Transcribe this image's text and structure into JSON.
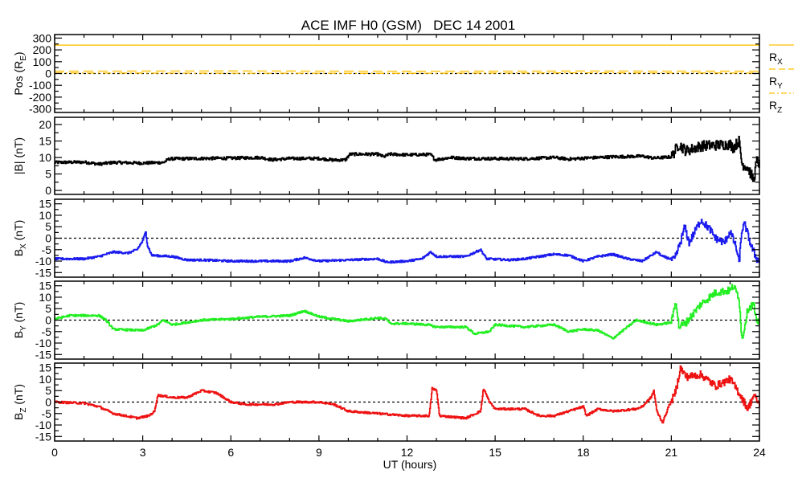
{
  "chart_data": {
    "type": "line",
    "title": "ACE IMF H0 (GSM)   DEC 14 2001",
    "xlabel": "UT (hours)",
    "xlim": [
      0,
      24
    ],
    "xticks": [
      0,
      3,
      6,
      9,
      12,
      15,
      18,
      21,
      24
    ],
    "panels": [
      {
        "id": "pos",
        "ylabel": "Pos (R",
        "ylabel_sub": "E",
        "ylabel_suffix": ")",
        "ylim": [
          -330,
          330
        ],
        "yticks": [
          300,
          200,
          100,
          0,
          -100,
          -200,
          -300
        ],
        "zero_line": true,
        "series": [
          {
            "name": "R",
            "sub": "X",
            "color": "#ffc000",
            "style": "solid",
            "points": [
              [
                0,
                240
              ],
              [
                24,
                240
              ]
            ]
          },
          {
            "name": "R",
            "sub": "Y",
            "color": "#ffc000",
            "style": "dashed",
            "points": [
              [
                0,
                20
              ],
              [
                6,
                22
              ],
              [
                12,
                19
              ],
              [
                18,
                21
              ],
              [
                24,
                20
              ]
            ]
          },
          {
            "name": "R",
            "sub": "Z",
            "color": "#ffc000",
            "style": "dashdot",
            "points": [
              [
                0,
                5
              ],
              [
                6,
                3
              ],
              [
                12,
                2
              ],
              [
                18,
                6
              ],
              [
                24,
                4
              ]
            ]
          }
        ]
      },
      {
        "id": "bmag",
        "ylabel": "|B| (nT)",
        "ylim": [
          -1.2,
          22.2
        ],
        "yticks": [
          20,
          15,
          10,
          5,
          0
        ],
        "zero_line": false,
        "series": [
          {
            "name": "|B|",
            "color": "#000000",
            "points": [
              [
                0,
                8.5
              ],
              [
                1,
                8.6
              ],
              [
                1.5,
                8
              ],
              [
                2,
                8.5
              ],
              [
                3,
                8.3
              ],
              [
                3.7,
                8.5
              ],
              [
                3.9,
                9.6
              ],
              [
                6,
                9.8
              ],
              [
                7,
                10
              ],
              [
                7.4,
                9.3
              ],
              [
                8,
                9.7
              ],
              [
                9,
                9.7
              ],
              [
                9.5,
                9.2
              ],
              [
                9.9,
                9.3
              ],
              [
                10.05,
                11
              ],
              [
                11,
                11
              ],
              [
                11.2,
                10.2
              ],
              [
                11.4,
                11
              ],
              [
                12,
                10.8
              ],
              [
                12.8,
                10.9
              ],
              [
                12.95,
                9.3
              ],
              [
                13.5,
                10
              ],
              [
                14,
                9.7
              ],
              [
                16,
                9.6
              ],
              [
                17,
                10
              ],
              [
                17.5,
                9.5
              ],
              [
                18,
                9.8
              ],
              [
                19,
                10.2
              ],
              [
                20,
                10.4
              ],
              [
                20.4,
                9.8
              ],
              [
                21,
                10.2
              ],
              [
                21.25,
                14
              ],
              [
                21.5,
                12
              ],
              [
                22,
                13.5
              ],
              [
                23,
                14
              ],
              [
                23.1,
                13
              ],
              [
                23.3,
                15
              ],
              [
                23.4,
                8
              ],
              [
                23.6,
                7
              ],
              [
                23.8,
                3
              ],
              [
                23.9,
                9
              ],
              [
                24,
                8
              ]
            ]
          }
        ]
      },
      {
        "id": "bx",
        "ylabel": "B",
        "ylabel_sub": "X",
        "ylabel_suffix": " (nT)",
        "ylim": [
          -17,
          17
        ],
        "yticks": [
          15,
          10,
          5,
          0,
          -5,
          -10,
          -15
        ],
        "zero_line": true,
        "series": [
          {
            "name": "Bx",
            "color": "#1a1aee",
            "points": [
              [
                0,
                -9
              ],
              [
                1,
                -9
              ],
              [
                1.5,
                -8
              ],
              [
                2,
                -6
              ],
              [
                2.5,
                -6.5
              ],
              [
                2.8,
                -5
              ],
              [
                3,
                -1
              ],
              [
                3.1,
                3
              ],
              [
                3.15,
                -3
              ],
              [
                3.3,
                -7.5
              ],
              [
                4,
                -8
              ],
              [
                4.5,
                -9.5
              ],
              [
                5,
                -9.5
              ],
              [
                6,
                -10
              ],
              [
                8,
                -10
              ],
              [
                8.5,
                -8.5
              ],
              [
                9,
                -10
              ],
              [
                10,
                -9.5
              ],
              [
                11,
                -9
              ],
              [
                11.3,
                -10.5
              ],
              [
                12,
                -10
              ],
              [
                12.5,
                -9
              ],
              [
                12.8,
                -6
              ],
              [
                13,
                -8
              ],
              [
                14,
                -8
              ],
              [
                14.5,
                -5
              ],
              [
                14.7,
                -9
              ],
              [
                15.5,
                -9.5
              ],
              [
                16,
                -9
              ],
              [
                17,
                -7
              ],
              [
                17.5,
                -7.5
              ],
              [
                18,
                -10
              ],
              [
                18.5,
                -8
              ],
              [
                19,
                -7
              ],
              [
                19.5,
                -9
              ],
              [
                20,
                -10
              ],
              [
                20.5,
                -6
              ],
              [
                20.7,
                -8
              ],
              [
                21.1,
                -9.5
              ],
              [
                21.3,
                -2
              ],
              [
                21.45,
                5
              ],
              [
                21.6,
                -2
              ],
              [
                21.8,
                3
              ],
              [
                22,
                8
              ],
              [
                22.3,
                4
              ],
              [
                22.5,
                0
              ],
              [
                22.8,
                -2
              ],
              [
                23,
                3
              ],
              [
                23.2,
                -4
              ],
              [
                23.3,
                -11
              ],
              [
                23.4,
                4
              ],
              [
                23.5,
                6
              ],
              [
                23.7,
                -3
              ],
              [
                23.9,
                -9
              ],
              [
                24,
                -10
              ]
            ]
          }
        ]
      },
      {
        "id": "by",
        "ylabel": "B",
        "ylabel_sub": "Y",
        "ylabel_suffix": " (nT)",
        "ylim": [
          -17,
          17
        ],
        "yticks": [
          15,
          10,
          5,
          0,
          -5,
          -10,
          -15
        ],
        "zero_line": true,
        "series": [
          {
            "name": "By",
            "color": "#22ee22",
            "points": [
              [
                0,
                0.5
              ],
              [
                0.5,
                2
              ],
              [
                1,
                2
              ],
              [
                1.5,
                2
              ],
              [
                1.7,
                0.5
              ],
              [
                2,
                -4
              ],
              [
                3,
                -4.5
              ],
              [
                3.5,
                -2
              ],
              [
                3.7,
                0
              ],
              [
                4,
                -2
              ],
              [
                4.5,
                -1
              ],
              [
                5,
                0
              ],
              [
                6,
                0.5
              ],
              [
                7,
                1.5
              ],
              [
                8,
                2
              ],
              [
                8.5,
                4
              ],
              [
                9,
                1.5
              ],
              [
                10,
                -0.5
              ],
              [
                11,
                1
              ],
              [
                11.3,
                0.5
              ],
              [
                11.4,
                -1.5
              ],
              [
                12,
                -1.5
              ],
              [
                12.7,
                -2
              ],
              [
                13,
                -3
              ],
              [
                14,
                -3
              ],
              [
                14.3,
                -6
              ],
              [
                14.8,
                -5
              ],
              [
                15,
                -2
              ],
              [
                16,
                -3
              ],
              [
                17,
                -2
              ],
              [
                17.5,
                -5
              ],
              [
                18,
                -4
              ],
              [
                18.5,
                -4.5
              ],
              [
                19,
                -8
              ],
              [
                19.3,
                -5
              ],
              [
                19.8,
                0
              ],
              [
                20.5,
                -2
              ],
              [
                21,
                -1
              ],
              [
                21.15,
                9
              ],
              [
                21.25,
                -3
              ],
              [
                21.5,
                -1
              ],
              [
                22,
                7
              ],
              [
                22.5,
                12
              ],
              [
                23,
                13
              ],
              [
                23.1,
                15
              ],
              [
                23.3,
                10
              ],
              [
                23.4,
                -9
              ],
              [
                23.6,
                5
              ],
              [
                23.8,
                7
              ],
              [
                23.9,
                -2
              ],
              [
                24,
                1
              ]
            ]
          }
        ]
      },
      {
        "id": "bz",
        "ylabel": "B",
        "ylabel_sub": "Z",
        "ylabel_suffix": " (nT)",
        "ylim": [
          -17,
          17
        ],
        "yticks": [
          15,
          10,
          5,
          0,
          -5,
          -10,
          -15
        ],
        "zero_line": true,
        "series": [
          {
            "name": "Bz",
            "color": "#ee1111",
            "points": [
              [
                0,
                0
              ],
              [
                1,
                -0.5
              ],
              [
                1.5,
                -2
              ],
              [
                2,
                -5
              ],
              [
                2.8,
                -7
              ],
              [
                3.2,
                -6
              ],
              [
                3.4,
                -4
              ],
              [
                3.5,
                3
              ],
              [
                4,
                2
              ],
              [
                4.5,
                2
              ],
              [
                5,
                5
              ],
              [
                5.5,
                4
              ],
              [
                6,
                0
              ],
              [
                6.5,
                -1
              ],
              [
                7.5,
                -1
              ],
              [
                8,
                0
              ],
              [
                9,
                0
              ],
              [
                9.5,
                -1
              ],
              [
                10,
                -4
              ],
              [
                11,
                -5
              ],
              [
                12,
                -6
              ],
              [
                12.75,
                -6
              ],
              [
                12.85,
                6
              ],
              [
                13,
                5
              ],
              [
                13.1,
                -6
              ],
              [
                14,
                -7
              ],
              [
                14.5,
                -4
              ],
              [
                14.6,
                6
              ],
              [
                14.8,
                0
              ],
              [
                15,
                -3
              ],
              [
                16,
                -3
              ],
              [
                16.5,
                -6
              ],
              [
                17,
                -6
              ],
              [
                17.5,
                -4
              ],
              [
                18,
                -2
              ],
              [
                18.1,
                -6
              ],
              [
                18.5,
                -3
              ],
              [
                19,
                -4
              ],
              [
                19.8,
                -3
              ],
              [
                20,
                -2
              ],
              [
                20.3,
                2
              ],
              [
                20.4,
                5
              ],
              [
                20.5,
                -4
              ],
              [
                20.7,
                -9
              ],
              [
                20.9,
                -2
              ],
              [
                21.1,
                3
              ],
              [
                21.2,
                8
              ],
              [
                21.3,
                15
              ],
              [
                21.5,
                11
              ],
              [
                22,
                12
              ],
              [
                22.3,
                9
              ],
              [
                22.5,
                7
              ],
              [
                23,
                10
              ],
              [
                23.3,
                4
              ],
              [
                23.6,
                -3
              ],
              [
                23.8,
                3
              ],
              [
                24,
                -1
              ]
            ]
          }
        ]
      }
    ]
  }
}
